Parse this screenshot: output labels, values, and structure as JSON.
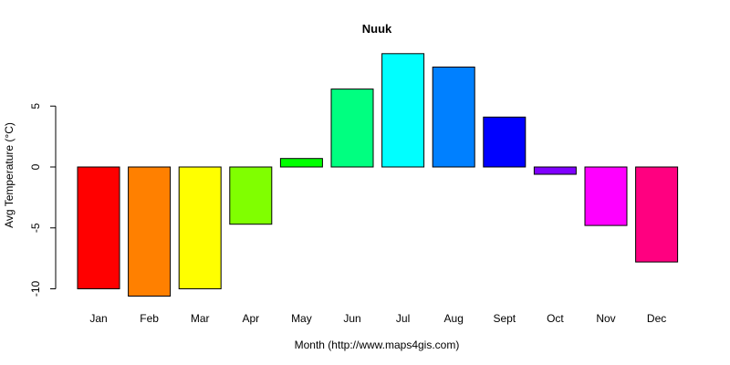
{
  "chart_data": {
    "type": "bar",
    "title": "Nuuk",
    "xlabel": "Month (http://www.maps4gis.com)",
    "ylabel": "Avg Temperature (°C)",
    "categories": [
      "Jan",
      "Feb",
      "Mar",
      "Apr",
      "May",
      "Jun",
      "Jul",
      "Aug",
      "Sept",
      "Oct",
      "Nov",
      "Dec"
    ],
    "values": [
      -10.0,
      -10.6,
      -10.0,
      -4.7,
      0.7,
      6.4,
      9.3,
      8.2,
      4.1,
      -0.6,
      -4.8,
      -7.8
    ],
    "colors": [
      "#FF0000",
      "#FF8000",
      "#FFFF00",
      "#80FF00",
      "#00FF00",
      "#00FF80",
      "#00FFFF",
      "#0080FF",
      "#0000FF",
      "#8000FF",
      "#FF00FF",
      "#FF0080"
    ],
    "yticks": [
      -10,
      -5,
      0,
      5
    ],
    "ylim": [
      -10.6,
      9.3
    ],
    "grid": false,
    "legend": "none"
  }
}
